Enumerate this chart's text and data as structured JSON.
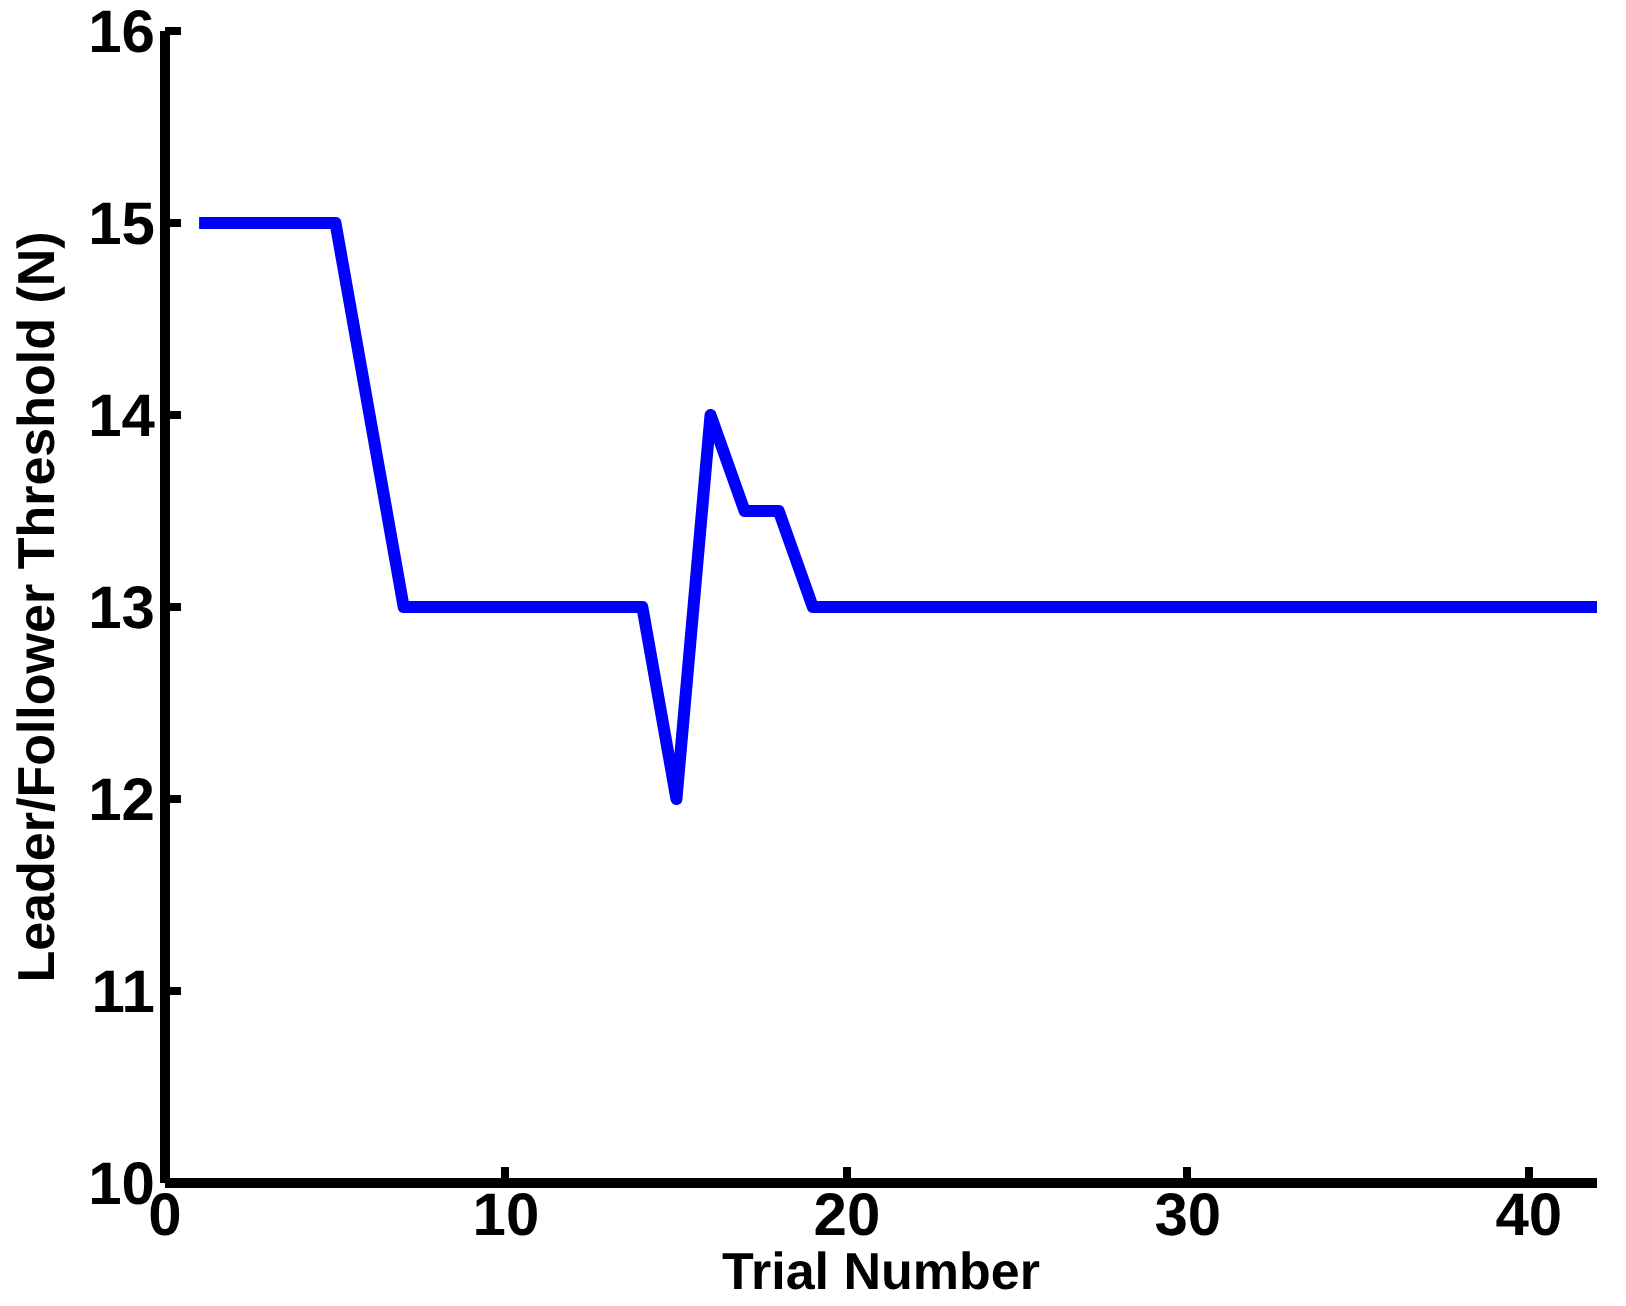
{
  "chart_data": {
    "type": "line",
    "xlabel": "Trial Number",
    "ylabel": "Leader/Follower Threshold (N)",
    "x": [
      1,
      5,
      7,
      14,
      15,
      16,
      17,
      18,
      19,
      42
    ],
    "series": [
      {
        "color": "#0000ff",
        "values": [
          15,
          15,
          13,
          13,
          12,
          14,
          13.5,
          13.5,
          13,
          13
        ]
      }
    ],
    "xlim": [
      0,
      42
    ],
    "xticks": [
      0,
      10,
      20,
      30,
      40
    ],
    "ylim": [
      10,
      16
    ],
    "yticks": [
      10,
      11,
      12,
      13,
      14,
      15,
      16
    ],
    "grid": false,
    "marker": "none",
    "line_style": "solid"
  }
}
